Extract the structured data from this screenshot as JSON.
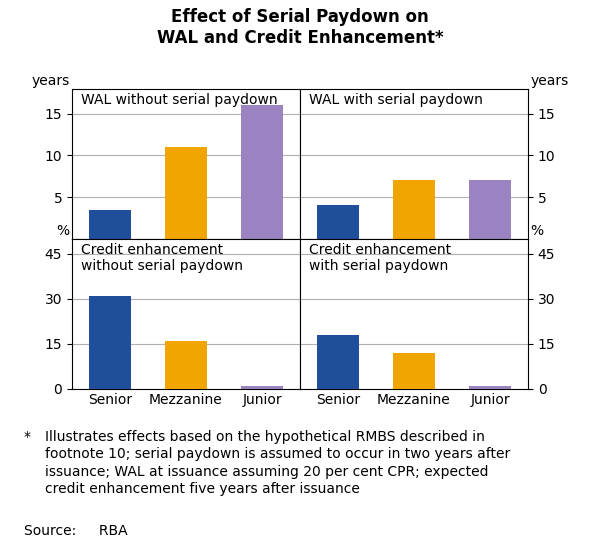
{
  "title": "Effect of Serial Paydown on\nWAL and Credit Enhancement*",
  "annotations": [
    "*",
    "Illustrates effects based on the hypothetical RMBS described in\nfootnote 10; serial paydown is assumed to occur in two years after\nissuance; WAL at issuance assuming 20 per cent CPR; expected\ncredit enhancement five years after issuance",
    "Source:   RBA"
  ],
  "chart_data": [
    {
      "type": "bar",
      "title": "WAL without serial paydown",
      "ylabel": "years",
      "categories": [
        "Senior",
        "Mezzanine",
        "Junior"
      ],
      "values": [
        3.5,
        11.0,
        16.0
      ],
      "colors": [
        "#1f4e9b",
        "#f0a500",
        "#9b82c0"
      ],
      "ylim": [
        0,
        18
      ],
      "yticks": [
        5,
        10,
        15
      ],
      "grid": true,
      "tick_labels": "y"
    },
    {
      "type": "bar",
      "title": "WAL with serial paydown",
      "ylabel": "years",
      "categories": [
        "Senior",
        "Mezzanine",
        "Junior"
      ],
      "values": [
        4.0,
        7.0,
        7.0
      ],
      "colors": [
        "#1f4e9b",
        "#f0a500",
        "#9b82c0"
      ],
      "ylim": [
        0,
        18
      ],
      "yticks": [
        5,
        10,
        15
      ],
      "grid": true,
      "tick_labels": "y"
    },
    {
      "type": "bar",
      "title": "Credit enhancement\nwithout serial paydown",
      "ylabel": "%",
      "categories": [
        "Senior",
        "Mezzanine",
        "Junior"
      ],
      "values": [
        31.0,
        16.0,
        1.0
      ],
      "colors": [
        "#1f4e9b",
        "#f0a500",
        "#9b82c0"
      ],
      "ylim": [
        0,
        50
      ],
      "yticks": [
        0,
        15,
        30,
        45
      ],
      "grid": true
    },
    {
      "type": "bar",
      "title": "Credit enhancement\nwith serial paydown",
      "ylabel": "%",
      "categories": [
        "Senior",
        "Mezzanine",
        "Junior"
      ],
      "values": [
        18.0,
        12.0,
        1.0
      ],
      "colors": [
        "#1f4e9b",
        "#f0a500",
        "#9b82c0"
      ],
      "ylim": [
        0,
        50
      ],
      "yticks": [
        0,
        15,
        30,
        45
      ],
      "grid": true
    }
  ]
}
